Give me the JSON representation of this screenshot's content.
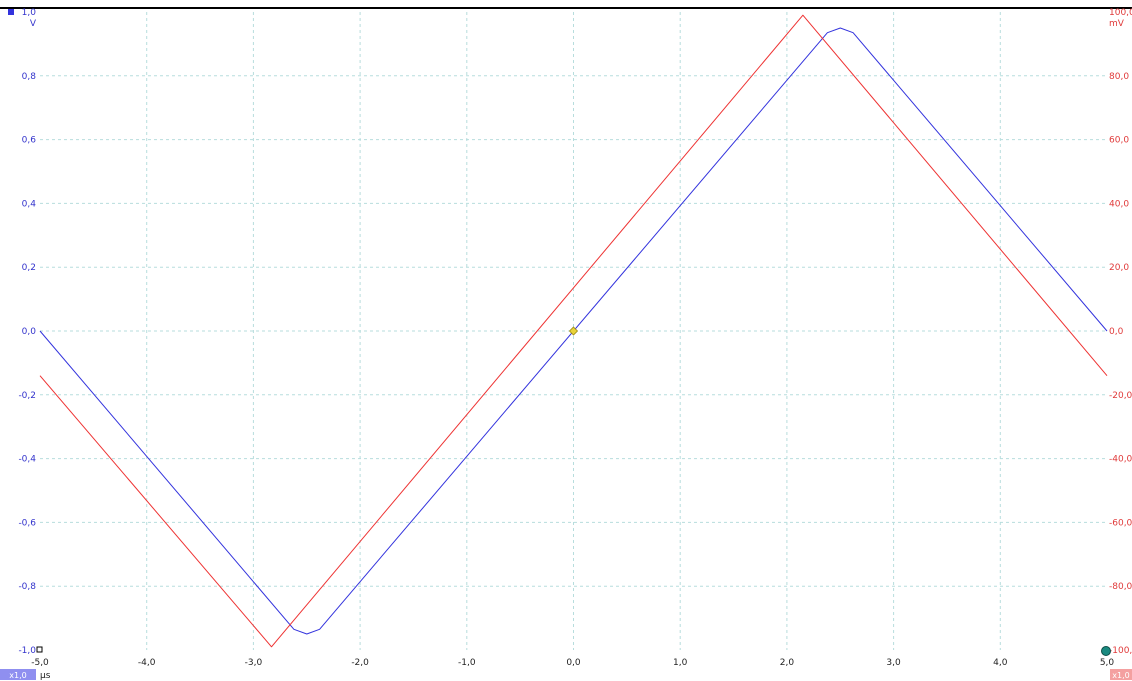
{
  "colors": {
    "channel_a": "#3333dd",
    "channel_b": "#ee3333",
    "grid": "#b7dddd",
    "trigger_marker": "#e8d23a",
    "ruler_handle": "#1a8a80",
    "scale_badge_a": "#8f8ff0",
    "scale_badge_b": "#f4a0a0"
  },
  "icons": {
    "channel_a_marker": "blue-square-icon",
    "trigger_marker": "yellow-diamond-icon",
    "ruler_handle": "teal-circle-icon",
    "origin_marker": "white-square-icon"
  },
  "scale_badges": {
    "left": "x1,0",
    "right": "x1,0"
  },
  "chart_data": {
    "type": "line",
    "x_unit": "µs",
    "xlim": [
      -5.0,
      5.0
    ],
    "x_ticks": [
      "-5,0",
      "-4,0",
      "-3,0",
      "-2,0",
      "-1,0",
      "0,0",
      "1,0",
      "2,0",
      "3,0",
      "4,0",
      "5,0"
    ],
    "grid": true,
    "axes": {
      "left": {
        "unit": "V",
        "ylim": [
          -1.0,
          1.0
        ],
        "ticks": [
          "1,0",
          "0,8",
          "0,6",
          "0,4",
          "0,2",
          "0,0",
          "-0,2",
          "-0,4",
          "-0,6",
          "-0,8",
          "-1,0"
        ]
      },
      "right": {
        "unit": "mV",
        "ylim": [
          -100.0,
          100.0
        ],
        "ticks": [
          "100,0",
          "80,0",
          "60,0",
          "40,0",
          "20,0",
          "0,0",
          "-20,0",
          "-40,0",
          "-60,0",
          "-80,0",
          "-100,0"
        ]
      }
    },
    "series": [
      {
        "axis": "left",
        "color": "#3333dd",
        "x": [
          -5.0,
          -2.62,
          -2.5,
          -2.38,
          2.38,
          2.5,
          2.62,
          5.0
        ],
        "y": [
          0.0,
          -0.935,
          -0.95,
          -0.935,
          0.935,
          0.95,
          0.935,
          0.0
        ]
      },
      {
        "axis": "right",
        "color": "#ee3333",
        "x": [
          -5.0,
          -2.83,
          2.15,
          5.0
        ],
        "y": [
          -14.0,
          -99.0,
          99.0,
          -14.0
        ]
      }
    ],
    "trigger": {
      "x": 0.0,
      "y": 0.0
    }
  }
}
